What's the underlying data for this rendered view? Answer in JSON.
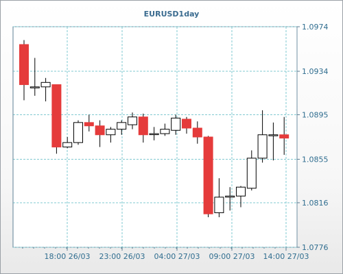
{
  "chart_data": {
    "type": "candlestick",
    "title": "EURUSD1day",
    "y_ticks": [
      "1.0974",
      "1.0934",
      "1.0895",
      "1.0855",
      "1.0816",
      "1.0776"
    ],
    "ylim": [
      1.0776,
      1.0974
    ],
    "x_ticks": [
      "18:00 26/03",
      "23:00 26/03",
      "04:00 27/03",
      "09:00 27/03",
      "14:00 27/03"
    ],
    "grid": true,
    "colors": {
      "bullish_fill": "#ffffff",
      "bearish_fill": "#e53b3b",
      "outline": "#000000",
      "grid": "#7fc9d1",
      "axis_text": "#2f6d8f"
    },
    "candles": [
      {
        "o": 1.0958,
        "h": 1.0962,
        "l": 1.0908,
        "c": 1.0922
      },
      {
        "o": 1.092,
        "h": 1.0946,
        "l": 1.0912,
        "c": 1.092
      },
      {
        "o": 1.092,
        "h": 1.0928,
        "l": 1.0907,
        "c": 1.0924
      },
      {
        "o": 1.0922,
        "h": 1.0922,
        "l": 1.086,
        "c": 1.0866
      },
      {
        "o": 1.0866,
        "h": 1.0875,
        "l": 1.0865,
        "c": 1.087
      },
      {
        "o": 1.087,
        "h": 1.089,
        "l": 1.0868,
        "c": 1.0888
      },
      {
        "o": 1.0888,
        "h": 1.0895,
        "l": 1.088,
        "c": 1.0885
      },
      {
        "o": 1.0885,
        "h": 1.089,
        "l": 1.0866,
        "c": 1.0877
      },
      {
        "o": 1.0877,
        "h": 1.0884,
        "l": 1.087,
        "c": 1.0882
      },
      {
        "o": 1.0882,
        "h": 1.089,
        "l": 1.0877,
        "c": 1.0888
      },
      {
        "o": 1.0886,
        "h": 1.0897,
        "l": 1.0882,
        "c": 1.0893
      },
      {
        "o": 1.0893,
        "h": 1.0896,
        "l": 1.087,
        "c": 1.0877
      },
      {
        "o": 1.0878,
        "h": 1.0884,
        "l": 1.0872,
        "c": 1.0878
      },
      {
        "o": 1.0878,
        "h": 1.0887,
        "l": 1.0876,
        "c": 1.0882
      },
      {
        "o": 1.0881,
        "h": 1.0895,
        "l": 1.0877,
        "c": 1.0892
      },
      {
        "o": 1.0891,
        "h": 1.0893,
        "l": 1.0878,
        "c": 1.0883
      },
      {
        "o": 1.0883,
        "h": 1.0889,
        "l": 1.0869,
        "c": 1.0875
      },
      {
        "o": 1.0875,
        "h": 1.0876,
        "l": 1.0803,
        "c": 1.0806
      },
      {
        "o": 1.0807,
        "h": 1.0838,
        "l": 1.0803,
        "c": 1.0821
      },
      {
        "o": 1.0821,
        "h": 1.083,
        "l": 1.0809,
        "c": 1.0822
      },
      {
        "o": 1.0822,
        "h": 1.0831,
        "l": 1.0812,
        "c": 1.083
      },
      {
        "o": 1.0829,
        "h": 1.0863,
        "l": 1.0827,
        "c": 1.0856
      },
      {
        "o": 1.0856,
        "h": 1.0899,
        "l": 1.0852,
        "c": 1.0877
      },
      {
        "o": 1.0877,
        "h": 1.0888,
        "l": 1.0854,
        "c": 1.0877
      },
      {
        "o": 1.0877,
        "h": 1.0893,
        "l": 1.0859,
        "c": 1.0874
      }
    ]
  }
}
